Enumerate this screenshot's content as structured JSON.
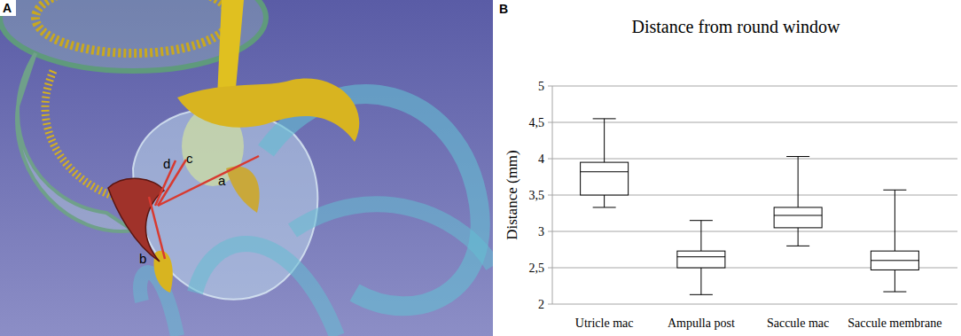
{
  "figure": {
    "panel_labels": [
      "A",
      "B"
    ],
    "annotations": [
      "a",
      "b",
      "c",
      "d"
    ]
  },
  "chart_data": {
    "type": "box",
    "title": "Distance from round window",
    "y_label": "Distance (mm)",
    "categories": [
      "Utricle mac",
      "Ampulla post",
      "Saccule mac",
      "Saccule membrane"
    ],
    "min": [
      3.33,
      2.13,
      2.8,
      2.17
    ],
    "q1": [
      3.5,
      2.5,
      3.05,
      2.47
    ],
    "median": [
      3.82,
      2.65,
      3.22,
      2.6
    ],
    "q3": [
      3.95,
      2.73,
      3.33,
      2.73
    ],
    "max": [
      4.55,
      3.15,
      4.03,
      3.57
    ],
    "ylim": [
      2,
      5
    ],
    "yticks": [
      2,
      {
        "value": 2.5,
        "label": "2,5"
      },
      3,
      {
        "value": 3.5,
        "label": "3,5"
      },
      4,
      {
        "value": 4.5,
        "label": "4,5"
      },
      5
    ],
    "grid": true
  }
}
